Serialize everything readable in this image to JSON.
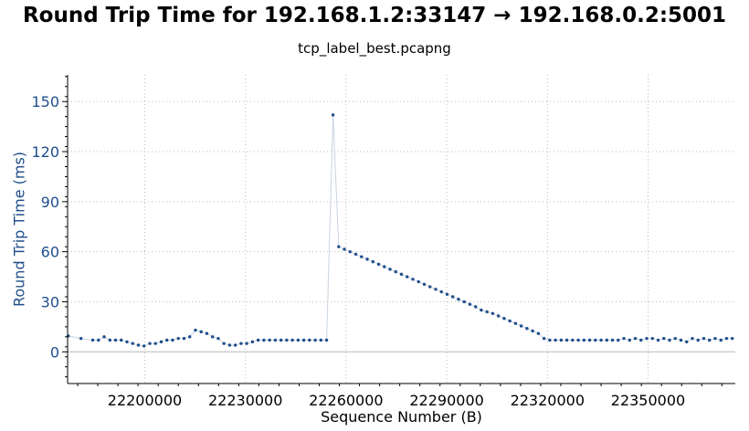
{
  "chart_data": {
    "type": "scatter",
    "title": "Round Trip Time for 192.168.1.2:33147 → 192.168.0.2:5001",
    "subtitle": "tcp_label_best.pcapng",
    "xlabel": "Sequence Number (B)",
    "ylabel": "Round Trip Time (ms)",
    "xlim": [
      22177000,
      22376000
    ],
    "ylim": [
      -19,
      166
    ],
    "xticks": [
      22200000,
      22230000,
      22260000,
      22290000,
      22320000,
      22350000
    ],
    "yticks": [
      0,
      30,
      60,
      90,
      120,
      150
    ],
    "grid": true,
    "legend": "none",
    "colors": {
      "marker": "#1f4e8c",
      "line": "#c8d3e0",
      "ylabel": "#1f4e8c",
      "grid": "#bbbbbb",
      "zero_line": "#bdbdbd"
    },
    "series": [
      {
        "x": [
          22177200,
          22181000,
          22184500,
          22186200,
          22187900,
          22189600,
          22191300,
          22193000,
          22194700,
          22196400,
          22198100,
          22199800,
          22201500,
          22203200,
          22204900,
          22206600,
          22208300,
          22210000,
          22211700,
          22213400,
          22215100,
          22216800,
          22218500,
          22220200,
          22221900,
          22223600,
          22225300,
          22227000,
          22228700,
          22230400,
          22232100,
          22233800,
          22235500,
          22237200,
          22238900,
          22240600,
          22242300,
          22244000,
          22245700,
          22247400,
          22249100,
          22250800,
          22252500,
          22254200,
          22256100,
          22257800,
          22259500,
          22261200,
          22262900,
          22264600,
          22266300,
          22268000,
          22269700,
          22271400,
          22273100,
          22274800,
          22276500,
          22278200,
          22279900,
          22281600,
          22283300,
          22285000,
          22286700,
          22288400,
          22290100,
          22291800,
          22293500,
          22295200,
          22296900,
          22298600,
          22300300,
          22302000,
          22303700,
          22305400,
          22307100,
          22308800,
          22310500,
          22312200,
          22313900,
          22315600,
          22317300,
          22319000,
          22320700,
          22322400,
          22324100,
          22325800,
          22327500,
          22329200,
          22330900,
          22332600,
          22334300,
          22336000,
          22337700,
          22339400,
          22341100,
          22342800,
          22344500,
          22346200,
          22347900,
          22349600,
          22351300,
          22353000,
          22354700,
          22356400,
          22358100,
          22359800,
          22361500,
          22363200,
          22364900,
          22366600,
          22368300,
          22370000,
          22371700,
          22373400,
          22375100
        ],
        "y": [
          9.5,
          8,
          7,
          7,
          9,
          7,
          7,
          7,
          6,
          5,
          4,
          3.5,
          5,
          5,
          6,
          7,
          7,
          8,
          8,
          9,
          13,
          12,
          11,
          9,
          8,
          5,
          4,
          4,
          5,
          5,
          6,
          7,
          7,
          7,
          7,
          7,
          7,
          7,
          7,
          7,
          7,
          7,
          7,
          7,
          142,
          63,
          61.5,
          60,
          58.5,
          57,
          55.5,
          54,
          52.5,
          51,
          49.5,
          48,
          46.5,
          45,
          43.5,
          42,
          40.5,
          39,
          37.5,
          36,
          34.5,
          33,
          31.5,
          30,
          28.5,
          27,
          25,
          24,
          23,
          21.5,
          20,
          18.5,
          17,
          15.5,
          14,
          12.5,
          11,
          8,
          7,
          7,
          7,
          7,
          7,
          7,
          7,
          7,
          7,
          7,
          7,
          7,
          7,
          8,
          7,
          8,
          7,
          8,
          8,
          7,
          8,
          7,
          8,
          7,
          6,
          8,
          7,
          8,
          7,
          8,
          7,
          8,
          8
        ]
      }
    ]
  }
}
